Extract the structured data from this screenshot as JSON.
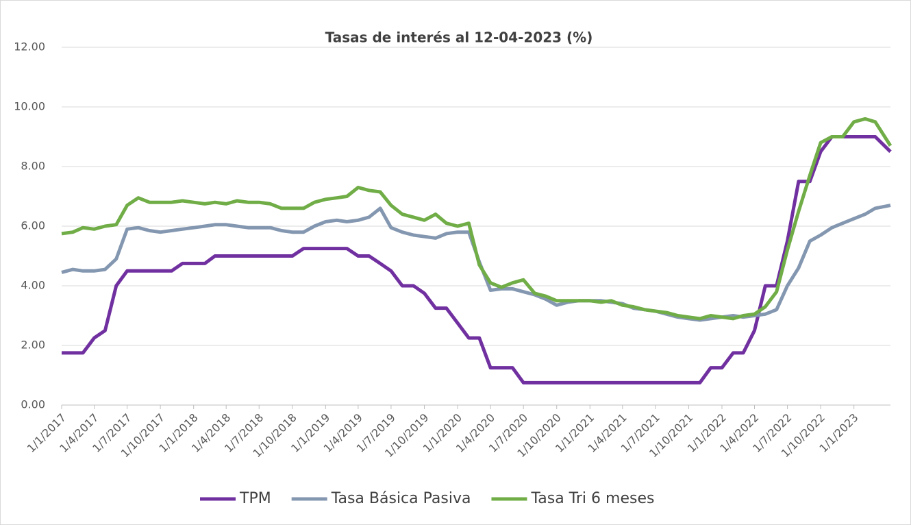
{
  "chart_data": {
    "type": "line",
    "title": "Tasas de interés al 12-04-2023 (%)",
    "x": [
      "1/1/2017",
      "1/2/2017",
      "1/3/2017",
      "1/4/2017",
      "1/5/2017",
      "1/6/2017",
      "1/7/2017",
      "1/8/2017",
      "1/9/2017",
      "1/10/2017",
      "1/11/2017",
      "1/12/2017",
      "1/1/2018",
      "1/2/2018",
      "1/3/2018",
      "1/4/2018",
      "1/5/2018",
      "1/6/2018",
      "1/7/2018",
      "1/8/2018",
      "1/9/2018",
      "1/10/2018",
      "1/11/2018",
      "1/12/2018",
      "1/1/2019",
      "1/2/2019",
      "1/3/2019",
      "1/4/2019",
      "1/5/2019",
      "1/6/2019",
      "1/7/2019",
      "1/8/2019",
      "1/9/2019",
      "1/10/2019",
      "1/11/2019",
      "1/12/2019",
      "1/1/2020",
      "1/2/2020",
      "1/3/2020",
      "1/4/2020",
      "1/5/2020",
      "1/6/2020",
      "1/7/2020",
      "1/8/2020",
      "1/9/2020",
      "1/10/2020",
      "1/11/2020",
      "1/12/2020",
      "1/1/2021",
      "1/2/2021",
      "1/3/2021",
      "1/4/2021",
      "1/5/2021",
      "1/6/2021",
      "1/7/2021",
      "1/8/2021",
      "1/9/2021",
      "1/10/2021",
      "1/11/2021",
      "1/12/2021",
      "1/1/2022",
      "1/2/2022",
      "1/3/2022",
      "1/4/2022",
      "1/5/2022",
      "1/6/2022",
      "1/7/2022",
      "1/8/2022",
      "1/9/2022",
      "1/10/2022",
      "1/11/2022",
      "1/12/2022",
      "1/1/2023",
      "1/2/2023",
      "1/3/2023",
      "12/4/2023"
    ],
    "series": [
      {
        "name": "TPM",
        "color": "#7030a0",
        "values": [
          1.75,
          1.75,
          1.75,
          2.25,
          2.5,
          4,
          4.5,
          4.5,
          4.5,
          4.5,
          4.5,
          4.75,
          4.75,
          4.75,
          5,
          5,
          5,
          5,
          5,
          5,
          5,
          5,
          5.25,
          5.25,
          5.25,
          5.25,
          5.25,
          5,
          5,
          4.75,
          4.5,
          4,
          4,
          3.75,
          3.25,
          3.25,
          2.75,
          2.25,
          2.25,
          1.25,
          1.25,
          1.25,
          0.75,
          0.75,
          0.75,
          0.75,
          0.75,
          0.75,
          0.75,
          0.75,
          0.75,
          0.75,
          0.75,
          0.75,
          0.75,
          0.75,
          0.75,
          0.75,
          0.75,
          1.25,
          1.25,
          1.75,
          1.75,
          2.5,
          4,
          4,
          5.5,
          7.5,
          7.5,
          8.5,
          9,
          9,
          9,
          9,
          9,
          8.5
        ]
      },
      {
        "name": "Tasa Básica Pasiva",
        "color": "#8497b0",
        "values": [
          4.45,
          4.55,
          4.5,
          4.5,
          4.55,
          4.9,
          5.9,
          5.95,
          5.85,
          5.8,
          5.85,
          5.9,
          5.95,
          6.0,
          6.05,
          6.05,
          6.0,
          5.95,
          5.95,
          5.95,
          5.85,
          5.8,
          5.8,
          6.0,
          6.15,
          6.2,
          6.15,
          6.2,
          6.3,
          6.6,
          5.95,
          5.8,
          5.7,
          5.65,
          5.6,
          5.75,
          5.8,
          5.8,
          4.8,
          3.85,
          3.9,
          3.9,
          3.8,
          3.7,
          3.55,
          3.35,
          3.45,
          3.5,
          3.5,
          3.5,
          3.45,
          3.4,
          3.25,
          3.2,
          3.15,
          3.05,
          2.95,
          2.9,
          2.85,
          2.9,
          2.95,
          3.0,
          2.95,
          3.0,
          3.05,
          3.2,
          4.0,
          4.6,
          5.5,
          5.7,
          5.95,
          6.1,
          6.25,
          6.4,
          6.6,
          6.7
        ]
      },
      {
        "name": "Tasa Tri 6 meses",
        "color": "#70ad47",
        "values": [
          5.75,
          5.8,
          5.95,
          5.9,
          6.0,
          6.05,
          6.7,
          6.95,
          6.8,
          6.8,
          6.8,
          6.85,
          6.8,
          6.75,
          6.8,
          6.75,
          6.85,
          6.8,
          6.8,
          6.75,
          6.6,
          6.6,
          6.6,
          6.8,
          6.9,
          6.95,
          7.0,
          7.3,
          7.2,
          7.15,
          6.7,
          6.4,
          6.3,
          6.2,
          6.4,
          6.1,
          6.0,
          6.1,
          4.7,
          4.1,
          3.95,
          4.1,
          4.2,
          3.75,
          3.65,
          3.5,
          3.5,
          3.5,
          3.5,
          3.45,
          3.5,
          3.35,
          3.3,
          3.2,
          3.15,
          3.1,
          3.0,
          2.95,
          2.9,
          3.0,
          2.95,
          2.9,
          3.0,
          3.05,
          3.3,
          3.8,
          5.2,
          6.5,
          7.7,
          8.8,
          9.0,
          9.0,
          9.5,
          9.6,
          9.5,
          8.7
        ]
      }
    ],
    "xlim": [
      "1/1/2017",
      "12/4/2023"
    ],
    "xticks": [
      "1/1/2017",
      "1/4/2017",
      "1/7/2017",
      "1/10/2017",
      "1/1/2018",
      "1/4/2018",
      "1/7/2018",
      "1/10/2018",
      "1/1/2019",
      "1/4/2019",
      "1/7/2019",
      "1/10/2019",
      "1/1/2020",
      "1/4/2020",
      "1/7/2020",
      "1/10/2020",
      "1/1/2021",
      "1/4/2021",
      "1/7/2021",
      "1/10/2021",
      "1/1/2022",
      "1/4/2022",
      "1/7/2022",
      "1/10/2022",
      "1/1/2023"
    ],
    "ylim": [
      0,
      12
    ],
    "yticks": [
      {
        "value": 0,
        "label": "0.00"
      },
      {
        "value": 2,
        "label": "2.00"
      },
      {
        "value": 4,
        "label": "4.00"
      },
      {
        "value": 6,
        "label": "6.00"
      },
      {
        "value": 8,
        "label": "8.00"
      },
      {
        "value": 10,
        "label": "10.00"
      },
      {
        "value": 12,
        "label": "12.00"
      }
    ],
    "grid": true,
    "legend": "bottom"
  }
}
